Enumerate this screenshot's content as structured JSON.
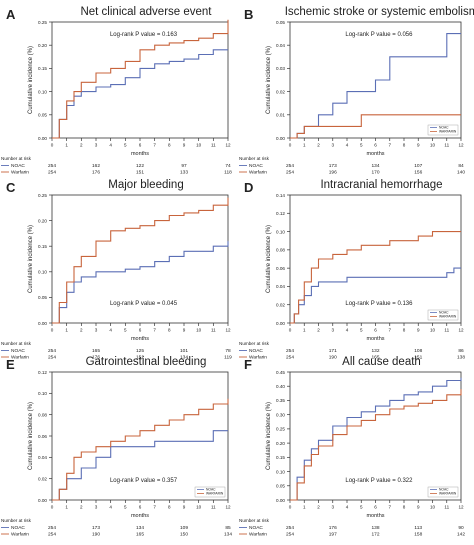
{
  "colors": {
    "noac": "#5b6fb5",
    "warfarin": "#c8643c",
    "axis": "#333333",
    "text": "#222222"
  },
  "risk_table_title": "Number at risk",
  "chart_data": [
    {
      "letter": "A",
      "title": "Net clinical adverse event",
      "type": "line",
      "xlabel": "months",
      "ylabel": "Cumulative incidence (%)",
      "xlim": [
        0,
        12
      ],
      "ylim": [
        0,
        0.25
      ],
      "yticks": [
        "0.00",
        "0.05",
        "0.10",
        "0.15",
        "0.20",
        "0.25"
      ],
      "xticks": [
        "0",
        "1",
        "2",
        "3",
        "4",
        "5",
        "6",
        "7",
        "8",
        "9",
        "10",
        "11",
        "12"
      ],
      "pvalue": "Log-rank P value = 0.163",
      "pvalue_pos": "top-center",
      "legend": null,
      "series": [
        {
          "name": "NOAC",
          "x": [
            0,
            0.5,
            1,
            1.5,
            2,
            3,
            4,
            5,
            6,
            7,
            8,
            9,
            10,
            11,
            12
          ],
          "y": [
            0,
            0.04,
            0.07,
            0.09,
            0.1,
            0.11,
            0.115,
            0.13,
            0.15,
            0.16,
            0.165,
            0.17,
            0.18,
            0.19,
            0.19
          ]
        },
        {
          "name": "Warfarin",
          "x": [
            0,
            0.5,
            1,
            1.5,
            2,
            3,
            4,
            5,
            6,
            7,
            8,
            9,
            10,
            11,
            12
          ],
          "y": [
            0,
            0.04,
            0.08,
            0.1,
            0.12,
            0.14,
            0.15,
            0.165,
            0.19,
            0.2,
            0.205,
            0.21,
            0.215,
            0.225,
            0.255
          ]
        }
      ],
      "risk": [
        {
          "label": "NOAC",
          "values": [
            "254",
            "162",
            "122",
            "97",
            "74"
          ]
        },
        {
          "label": "Warfarin",
          "values": [
            "254",
            "176",
            "151",
            "133",
            "118"
          ]
        }
      ]
    },
    {
      "letter": "B",
      "title": "Ischemic stroke or systemic embolism",
      "type": "line",
      "xlabel": "months",
      "ylabel": "Cumulative incidence (%)",
      "xlim": [
        0,
        12
      ],
      "ylim": [
        0,
        0.05
      ],
      "yticks": [
        "0.00",
        "0.01",
        "0.02",
        "0.03",
        "0.04",
        "0.05"
      ],
      "xticks": [
        "0",
        "1",
        "2",
        "3",
        "4",
        "5",
        "6",
        "7",
        "8",
        "9",
        "10",
        "11",
        "12"
      ],
      "pvalue": "Log-rank P value = 0.056",
      "pvalue_pos": "top-center",
      "legend": {
        "items": [
          "NOAC",
          "WARFARIN"
        ],
        "position": "bottom-right"
      },
      "series": [
        {
          "name": "NOAC",
          "x": [
            0,
            0.5,
            1,
            2,
            3,
            4,
            6,
            7,
            8,
            10,
            11,
            12
          ],
          "y": [
            0,
            0.002,
            0.005,
            0.01,
            0.015,
            0.02,
            0.025,
            0.035,
            0.035,
            0.035,
            0.045,
            0.045
          ]
        },
        {
          "name": "Warfarin",
          "x": [
            0,
            0.5,
            1,
            2,
            4,
            5,
            6,
            8,
            10,
            12
          ],
          "y": [
            0,
            0.002,
            0.005,
            0.005,
            0.005,
            0.01,
            0.01,
            0.01,
            0.01,
            0.01
          ]
        }
      ],
      "risk": [
        {
          "label": "NOAC",
          "values": [
            "254",
            "173",
            "134",
            "107",
            "84"
          ]
        },
        {
          "label": "Warfarin",
          "values": [
            "254",
            "196",
            "170",
            "156",
            "140"
          ]
        }
      ]
    },
    {
      "letter": "C",
      "title": "Major bleeding",
      "type": "line",
      "xlabel": "months",
      "ylabel": "Cumulative incidence (%)",
      "xlim": [
        0,
        12
      ],
      "ylim": [
        0,
        0.25
      ],
      "yticks": [
        "0.00",
        "0.05",
        "0.10",
        "0.15",
        "0.20",
        "0.25"
      ],
      "xticks": [
        "0",
        "1",
        "2",
        "3",
        "4",
        "5",
        "6",
        "7",
        "8",
        "9",
        "10",
        "11",
        "12"
      ],
      "pvalue": "Log-rank P value = 0.045",
      "pvalue_pos": "bottom-center",
      "legend": null,
      "series": [
        {
          "name": "NOAC",
          "x": [
            0,
            0.5,
            1,
            1.5,
            2,
            3,
            4,
            5,
            6,
            7,
            8,
            9,
            10,
            11,
            12
          ],
          "y": [
            0,
            0.03,
            0.06,
            0.08,
            0.09,
            0.1,
            0.1,
            0.105,
            0.11,
            0.12,
            0.13,
            0.14,
            0.14,
            0.15,
            0.16
          ]
        },
        {
          "name": "Warfarin",
          "x": [
            0,
            0.5,
            1,
            1.5,
            2,
            3,
            4,
            5,
            6,
            7,
            8,
            9,
            10,
            11,
            12
          ],
          "y": [
            0,
            0.04,
            0.08,
            0.11,
            0.13,
            0.16,
            0.18,
            0.185,
            0.19,
            0.2,
            0.21,
            0.215,
            0.22,
            0.23,
            0.245
          ]
        }
      ],
      "risk": [
        {
          "label": "NOAC",
          "values": [
            "254",
            "165",
            "125",
            "101",
            "78"
          ]
        },
        {
          "label": "Warfarin",
          "values": [
            "254",
            "176",
            "152",
            "134",
            "119"
          ]
        }
      ]
    },
    {
      "letter": "D",
      "title": "Intracranial hemorrhage",
      "type": "line",
      "xlabel": "months",
      "ylabel": "Cumulative incidence (%)",
      "xlim": [
        0,
        12
      ],
      "ylim": [
        0,
        0.14
      ],
      "yticks": [
        "0.00",
        "0.02",
        "0.04",
        "0.06",
        "0.08",
        "0.10",
        "0.12",
        "0.14"
      ],
      "xticks": [
        "0",
        "1",
        "2",
        "3",
        "4",
        "5",
        "6",
        "7",
        "8",
        "9",
        "10",
        "11",
        "12"
      ],
      "pvalue": "Log-rank P value = 0.136",
      "pvalue_pos": "bottom-center",
      "legend": {
        "items": [
          "NOAC",
          "WARFARIN"
        ],
        "position": "bottom-right"
      },
      "series": [
        {
          "name": "NOAC",
          "x": [
            0,
            0.3,
            0.6,
            1,
            1.5,
            2,
            3,
            4,
            6,
            8,
            10,
            11,
            11.5,
            12
          ],
          "y": [
            0,
            0.01,
            0.02,
            0.03,
            0.04,
            0.045,
            0.045,
            0.05,
            0.05,
            0.05,
            0.05,
            0.055,
            0.06,
            0.06
          ]
        },
        {
          "name": "Warfarin",
          "x": [
            0,
            0.3,
            0.6,
            1,
            1.5,
            2,
            3,
            4,
            5,
            6,
            7,
            8,
            9,
            10,
            11,
            12
          ],
          "y": [
            0,
            0.01,
            0.025,
            0.045,
            0.06,
            0.07,
            0.075,
            0.08,
            0.085,
            0.085,
            0.09,
            0.09,
            0.095,
            0.1,
            0.1,
            0.1
          ]
        }
      ],
      "risk": [
        {
          "label": "NOAC",
          "values": [
            "254",
            "171",
            "132",
            "108",
            "86"
          ]
        },
        {
          "label": "Warfarin",
          "values": [
            "254",
            "190",
            "165",
            "151",
            "138"
          ]
        }
      ]
    },
    {
      "letter": "E",
      "title": "Gatrointestinal bleeding",
      "type": "line",
      "xlabel": "months",
      "ylabel": "Cumulative incidence (%)",
      "xlim": [
        0,
        12
      ],
      "ylim": [
        0,
        0.12
      ],
      "yticks": [
        "0.00",
        "0.02",
        "0.04",
        "0.06",
        "0.08",
        "0.10",
        "0.12"
      ],
      "xticks": [
        "0",
        "1",
        "2",
        "3",
        "4",
        "5",
        "6",
        "7",
        "8",
        "9",
        "10",
        "11",
        "12"
      ],
      "pvalue": "Log-rank P value = 0.357",
      "pvalue_pos": "bottom-center",
      "legend": {
        "items": [
          "NOAC",
          "WARFARIN"
        ],
        "position": "bottom-right"
      },
      "series": [
        {
          "name": "NOAC",
          "x": [
            0,
            0.5,
            1,
            2,
            3,
            4,
            6,
            7,
            8,
            9,
            11,
            12
          ],
          "y": [
            0,
            0.01,
            0.02,
            0.03,
            0.04,
            0.05,
            0.05,
            0.055,
            0.055,
            0.055,
            0.065,
            0.065
          ]
        },
        {
          "name": "Warfarin",
          "x": [
            0,
            0.5,
            1,
            1.5,
            2,
            3,
            4,
            5,
            6,
            7,
            8,
            9,
            10,
            11,
            12
          ],
          "y": [
            0,
            0.01,
            0.025,
            0.04,
            0.045,
            0.05,
            0.055,
            0.06,
            0.065,
            0.07,
            0.075,
            0.08,
            0.085,
            0.09,
            0.095
          ]
        }
      ],
      "risk": [
        {
          "label": "NOAC",
          "values": [
            "254",
            "173",
            "134",
            "109",
            "85"
          ]
        },
        {
          "label": "Warfarin",
          "values": [
            "254",
            "190",
            "165",
            "150",
            "134"
          ]
        }
      ]
    },
    {
      "letter": "F",
      "title": "All cause death",
      "type": "line",
      "xlabel": "months",
      "ylabel": "Cumulative incidence (%)",
      "xlim": [
        0,
        12
      ],
      "ylim": [
        0,
        0.45
      ],
      "yticks": [
        "0.00",
        "0.05",
        "0.10",
        "0.15",
        "0.20",
        "0.25",
        "0.30",
        "0.35",
        "0.40",
        "0.45"
      ],
      "xticks": [
        "0",
        "1",
        "2",
        "3",
        "4",
        "5",
        "6",
        "7",
        "8",
        "9",
        "10",
        "11",
        "12"
      ],
      "pvalue": "Log-rank P value = 0.322",
      "pvalue_pos": "bottom-center",
      "legend": {
        "items": [
          "NOAC",
          "WARFARIN"
        ],
        "position": "bottom-right"
      },
      "series": [
        {
          "name": "NOAC",
          "x": [
            0,
            0.5,
            1,
            1.5,
            2,
            3,
            4,
            5,
            6,
            7,
            8,
            9,
            10,
            11,
            12
          ],
          "y": [
            0,
            0.08,
            0.14,
            0.18,
            0.21,
            0.26,
            0.29,
            0.31,
            0.33,
            0.35,
            0.37,
            0.38,
            0.4,
            0.42,
            0.43
          ]
        },
        {
          "name": "Warfarin",
          "x": [
            0,
            0.5,
            1,
            1.5,
            2,
            3,
            4,
            5,
            6,
            7,
            8,
            9,
            10,
            11,
            12
          ],
          "y": [
            0,
            0.06,
            0.12,
            0.16,
            0.19,
            0.23,
            0.26,
            0.28,
            0.3,
            0.32,
            0.33,
            0.34,
            0.35,
            0.37,
            0.39
          ]
        }
      ],
      "risk": [
        {
          "label": "NOAC",
          "values": [
            "254",
            "176",
            "138",
            "113",
            "90"
          ]
        },
        {
          "label": "Warfarin",
          "values": [
            "254",
            "197",
            "172",
            "158",
            "142"
          ]
        }
      ]
    }
  ]
}
